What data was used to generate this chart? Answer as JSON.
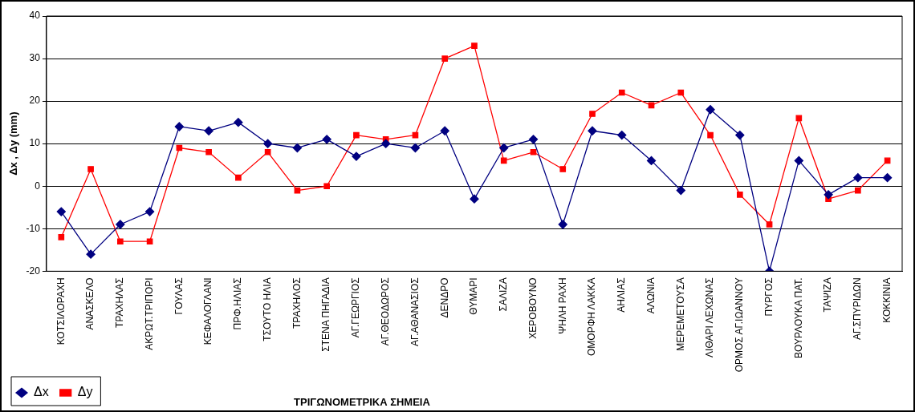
{
  "chart_data": {
    "type": "line",
    "xlabel": "ΤΡΙΓΩΝΟΜΕΤΡΙΚΑ ΣΗΜΕΙΑ",
    "ylabel": "Δx , Δy (mm)",
    "categories": [
      "ΚΟΤΣΙΛΟΡΑΧΗ",
      "ΑΝΑΣΚΕΛΟ",
      "ΤΡΑΧΗΛΑΣ",
      "ΑΚΡΩΤ.ΤΡΙΠΟΡΙ",
      "ΓΟΥΛΑΣ",
      "ΚΕΦΑΛΟΓΛΑΝΙ",
      "ΠΡΦ.ΗΛΙΑΣ",
      "ΤΣΟΥΤΟ ΗΛΙΑ",
      "ΤΡΑΧΗΛΟΣ",
      "ΣΤΕΝΑ ΠΗΓΑΔΙΑ",
      "ΑΓ.ΓΕΩΡΓΙΟΣ",
      "ΑΓ.ΘΕΟΔΩΡΟΣ",
      "ΑΓ.ΑΘΑΝΑΣΙΟΣ",
      "ΔΕΝΔΡΟ",
      "ΘΥΜΑΡΙ",
      "ΣΑΛΙΖΑ",
      "ΧΕΡΟΒΟΥΝΟ",
      "ΨΗΛΗ ΡΑΧΗ",
      "ΟΜΟΡΦΗ ΛΑΚΚΑ",
      "ΑΗΛΙΑΣ",
      "ΑΛΩΝΙΑ",
      "ΜΕΡΕΜΕΤΟΥΣΑ",
      "ΛΙΘΑΡΙ ΛΕΧΩΝΑΣ",
      "ΟΡΜΟΣ ΑΓ.ΙΩΑΝΝΟΥ",
      "ΠΥΡΓΟΣ",
      "ΒΟΥΡΛΟΥΚΑ ΠΑΤ.",
      "ΤΑΨΙΖΑ",
      "ΑΓ.ΣΠΥΡΙΔΩΝ",
      "ΚΟΚΚΙΝΙΑ"
    ],
    "series": [
      {
        "name": "Δx",
        "color": "#000080",
        "marker": "diamond",
        "values": [
          -6,
          -16,
          -9,
          -6,
          14,
          13,
          15,
          10,
          9,
          11,
          7,
          10,
          9,
          13,
          -3,
          9,
          11,
          -9,
          13,
          12,
          6,
          -1,
          18,
          12,
          -20,
          6,
          -2,
          2,
          2
        ]
      },
      {
        "name": "Δy",
        "color": "#ff0000",
        "marker": "square",
        "values": [
          -12,
          4,
          -13,
          -13,
          9,
          8,
          2,
          8,
          -1,
          0,
          12,
          11,
          12,
          30,
          33,
          6,
          8,
          4,
          17,
          22,
          19,
          22,
          12,
          -2,
          -9,
          16,
          -3,
          -1,
          6
        ]
      }
    ],
    "ylim": [
      -20,
      40
    ],
    "yticks": [
      -20,
      -10,
      0,
      10,
      20,
      30,
      40
    ],
    "grid": "y",
    "legend": "bottom left"
  }
}
